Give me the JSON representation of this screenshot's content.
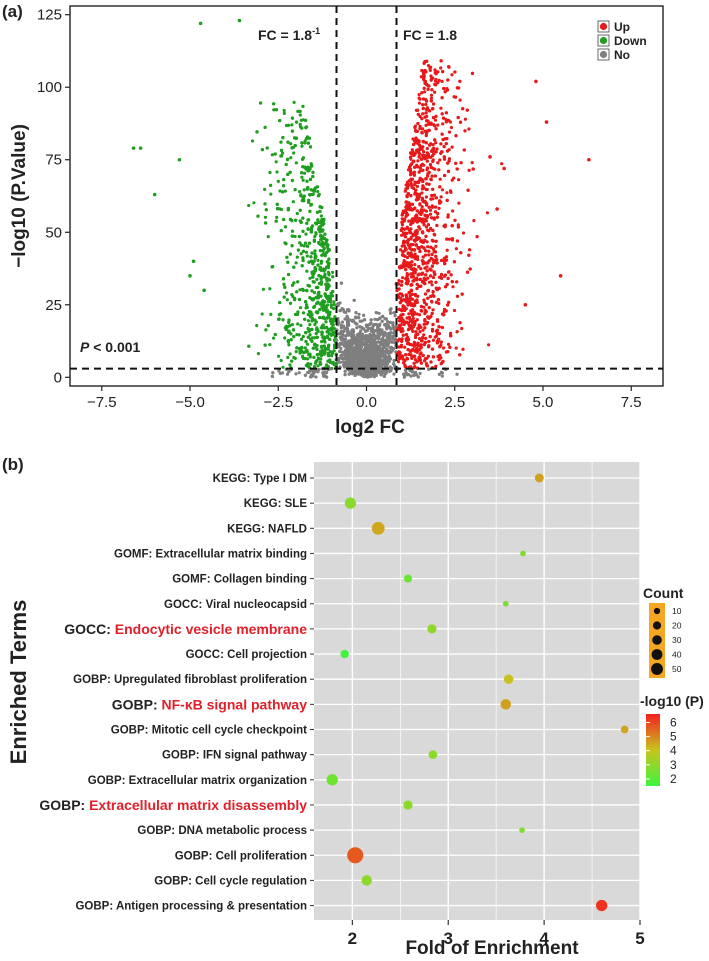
{
  "chart_data": [
    {
      "type": "scatter",
      "panel_label": "(a)",
      "xlabel": "log2 FC",
      "ylabel": "−log10 (P.Value)",
      "xlim": [
        -8.4,
        8.4
      ],
      "ylim": [
        -3,
        128
      ],
      "xticks": [
        -7.5,
        -5.0,
        -2.5,
        0.0,
        2.5,
        5.0,
        7.5
      ],
      "xtick_labels": [
        "−7.5",
        "−5.0",
        "−2.5",
        "0.0",
        "2.5",
        "5.0",
        "7.5"
      ],
      "yticks": [
        0,
        25,
        50,
        75,
        100,
        125
      ],
      "ytick_labels": [
        "0",
        "25",
        "50",
        "75",
        "100",
        "125"
      ],
      "thresholds": {
        "fc_left": -0.85,
        "fc_right": 0.85,
        "p_line": 3
      },
      "annotations": {
        "fc_left": {
          "base": "FC = 1.8",
          "sup": "-1"
        },
        "fc_right": "FC = 1.8",
        "p": {
          "italic": "P",
          "rest": " < 0.001"
        }
      },
      "legend": {
        "position": "top-right",
        "items": [
          {
            "label": "Up",
            "color": "#e8191a"
          },
          {
            "label": "Down",
            "color": "#1f9e1f"
          },
          {
            "label": "No",
            "color": "#7f7f7f"
          }
        ]
      },
      "outliers": {
        "up": [
          [
            4.8,
            102
          ],
          [
            5.5,
            35
          ],
          [
            6.3,
            75
          ],
          [
            5.1,
            88
          ],
          [
            4.5,
            25
          ],
          [
            3.5,
            76
          ],
          [
            3.9,
            72
          ],
          [
            3.7,
            58
          ]
        ],
        "down": [
          [
            -6.6,
            79
          ],
          [
            -6.0,
            63
          ],
          [
            -6.4,
            79
          ],
          [
            -5.3,
            75
          ],
          [
            -4.9,
            40
          ],
          [
            -4.6,
            30
          ],
          [
            -4.7,
            122
          ],
          [
            -3.6,
            123
          ],
          [
            -5.0,
            35
          ]
        ]
      }
    },
    {
      "type": "scatter",
      "subtype": "bubble",
      "panel_label": "(b)",
      "xlabel": "Fold of Enrichment",
      "ylabel": "Enriched Terms",
      "xlim": [
        1.6,
        5.0
      ],
      "xticks": [
        2,
        3,
        4,
        5
      ],
      "xtick_labels": [
        "2",
        "3",
        "4",
        "5"
      ],
      "terms": [
        {
          "prefix": "KEGG:",
          "name": " Type I DM",
          "highlight": false,
          "x": 3.95,
          "count": 12,
          "logp": 4.6
        },
        {
          "prefix": "KEGG:",
          "name": " SLE",
          "highlight": false,
          "x": 1.98,
          "count": 22,
          "logp": 2.9
        },
        {
          "prefix": "KEGG:",
          "name": " NAFLD",
          "highlight": false,
          "x": 2.27,
          "count": 30,
          "logp": 4.5
        },
        {
          "prefix": "GOMF:",
          "name": " Extracellular matrix binding",
          "highlight": false,
          "x": 3.78,
          "count": 3,
          "logp": 2.7
        },
        {
          "prefix": "GOMF:",
          "name": " Collagen binding",
          "highlight": false,
          "x": 2.58,
          "count": 9,
          "logp": 2.3
        },
        {
          "prefix": "GOCC:",
          "name": " Viral nucleocapsid",
          "highlight": false,
          "x": 3.6,
          "count": 3,
          "logp": 2.6
        },
        {
          "prefix": "GOCC:",
          "name": " Endocytic vesicle membrane",
          "highlight": true,
          "x": 2.83,
          "count": 13,
          "logp": 3.0
        },
        {
          "prefix": "GOCC:",
          "name": " Cell projection",
          "highlight": false,
          "x": 1.92,
          "count": 10,
          "logp": 1.6
        },
        {
          "prefix": "GOBP:",
          "name": " Upregulated fibroblast proliferation",
          "highlight": false,
          "x": 3.63,
          "count": 14,
          "logp": 4.1
        },
        {
          "prefix": "GOBP:",
          "name": " NF-κB signal pathway",
          "highlight": true,
          "x": 3.6,
          "count": 18,
          "logp": 4.6
        },
        {
          "prefix": "GOBP:",
          "name": " Mitotic cell cycle checkpoint",
          "highlight": false,
          "x": 4.84,
          "count": 8,
          "logp": 4.5
        },
        {
          "prefix": "GOBP:",
          "name": " IFN signal pathway",
          "highlight": false,
          "x": 2.84,
          "count": 11,
          "logp": 2.9
        },
        {
          "prefix": "GOBP:",
          "name": " Extracellular matrix organization",
          "highlight": false,
          "x": 1.79,
          "count": 22,
          "logp": 2.4
        },
        {
          "prefix": "GOBP:",
          "name": " Extracellular matrix disassembly",
          "highlight": true,
          "x": 2.58,
          "count": 13,
          "logp": 2.9
        },
        {
          "prefix": "GOBP:",
          "name": " DNA metabolic process",
          "highlight": false,
          "x": 3.77,
          "count": 3,
          "logp": 2.7
        },
        {
          "prefix": "GOBP:",
          "name": " Cell proliferation",
          "highlight": false,
          "x": 2.03,
          "count": 52,
          "logp": 5.7
        },
        {
          "prefix": "GOBP:",
          "name": " Cell cycle regulation",
          "highlight": false,
          "x": 2.15,
          "count": 18,
          "logp": 2.9
        },
        {
          "prefix": "GOBP:",
          "name": " Antigen processing & presentation",
          "highlight": false,
          "x": 4.6,
          "count": 22,
          "logp": 6.3
        }
      ],
      "size_legend": {
        "title": "Count",
        "values": [
          10,
          20,
          30,
          40,
          50
        ],
        "color": "#f5a623"
      },
      "color_legend": {
        "title": "-log10 (P)",
        "range": [
          1.5,
          6.6
        ],
        "ticks": [
          2,
          3,
          4,
          5,
          6
        ],
        "tick_labels": [
          "2",
          "3",
          "4",
          "5",
          "6"
        ],
        "low_color": "#3df53d",
        "mid_color": "#c9c31f",
        "high_color": "#f51f1f"
      }
    }
  ]
}
